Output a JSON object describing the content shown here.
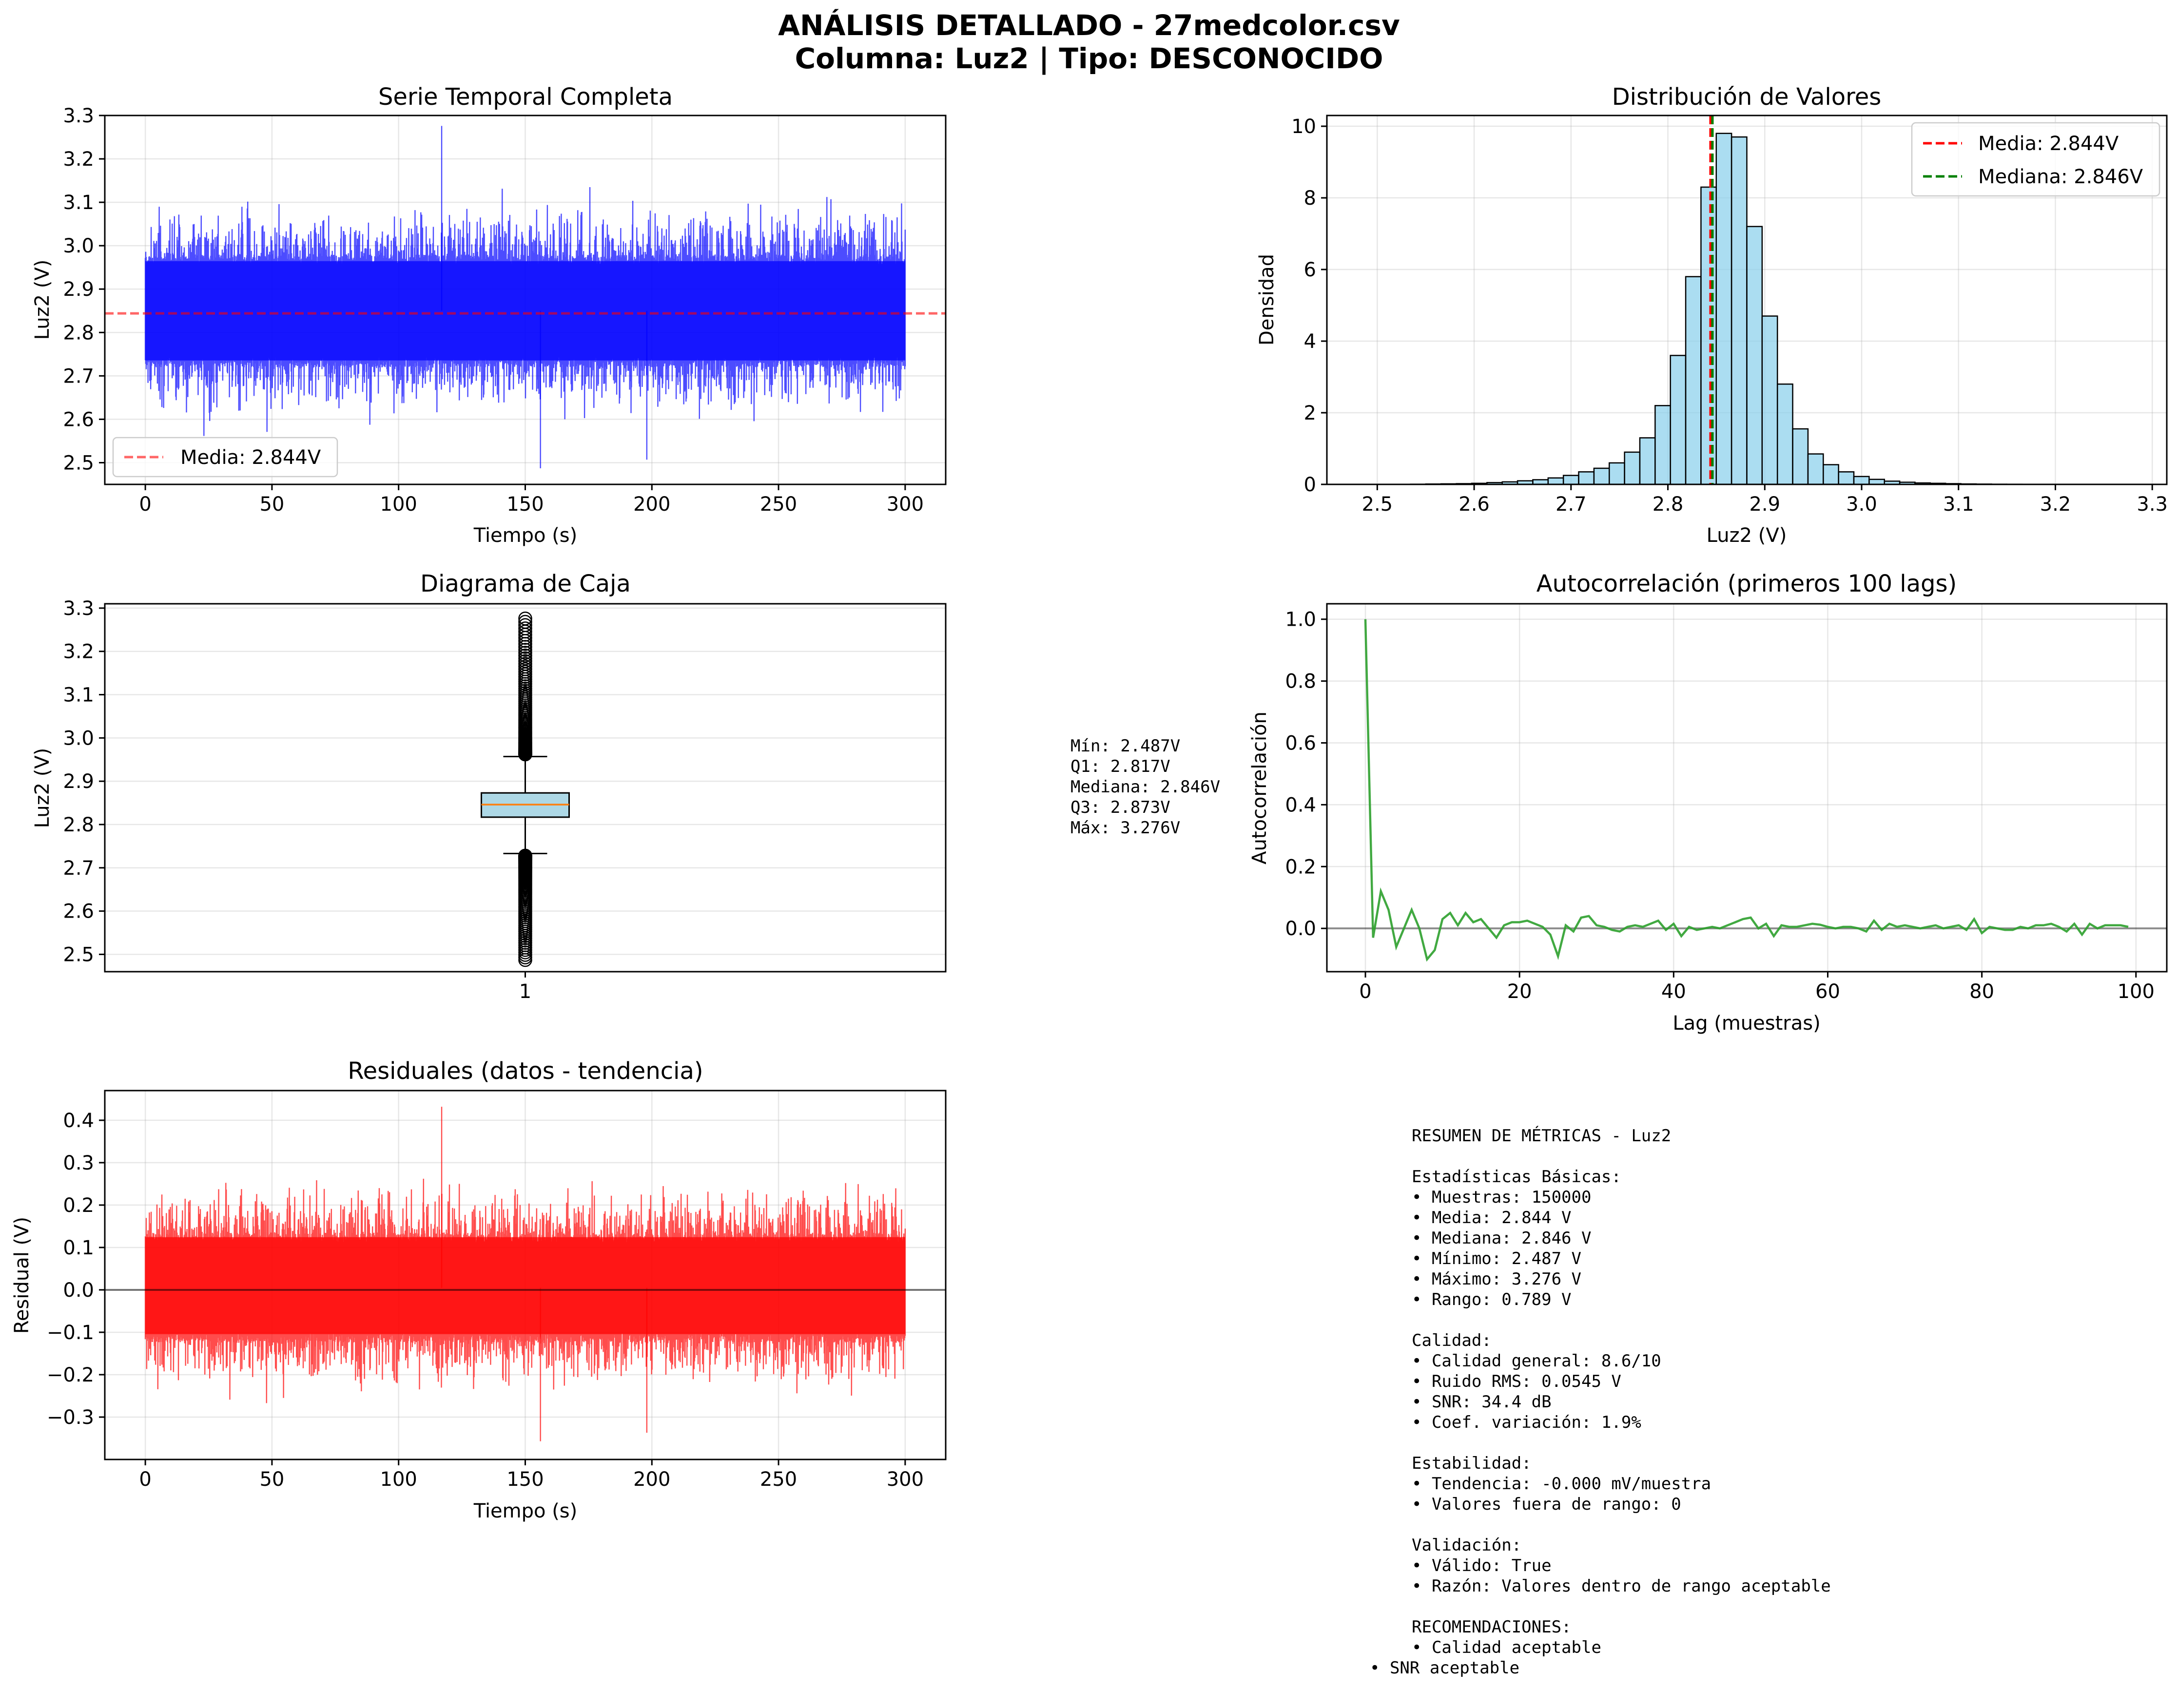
{
  "figure": {
    "title_line1": "ANÁLISIS DETALLADO - 27medcolor.csv",
    "title_line2": "Columna: Luz2 | Tipo: DESCONOCIDO"
  },
  "colors": {
    "signal": "#0000ff",
    "mean_red": "#ff0000",
    "median_green": "#008000",
    "hist_fill": "#87ceeb",
    "box_fill": "#add8e6",
    "box_median": "#ff7f0e",
    "acf_line": "#2ca02c",
    "residual": "#ff0000"
  },
  "chart_data": [
    {
      "id": "time_series",
      "type": "line",
      "title": "Serie Temporal Completa",
      "xlabel": "Tiempo (s)",
      "ylabel": "Luz2 (V)",
      "xlim": [
        -16,
        316
      ],
      "ylim": [
        2.45,
        3.3
      ],
      "xticks": [
        0,
        50,
        100,
        150,
        200,
        250,
        300
      ],
      "yticks": [
        2.5,
        2.6,
        2.7,
        2.8,
        2.9,
        3.0,
        3.1,
        3.2,
        3.3
      ],
      "x_range": [
        0,
        300
      ],
      "core_band": [
        2.72,
        2.98
      ],
      "extremes": [
        2.487,
        3.276
      ],
      "mean_line": 2.844,
      "legend": [
        {
          "label": "Media: 2.844V",
          "style": "dashed",
          "color": "#ff0000"
        }
      ],
      "legend_position": "lower-left",
      "grid": true
    },
    {
      "id": "histogram",
      "type": "bar",
      "title": "Distribución de Valores",
      "xlabel": "Luz2 (V)",
      "ylabel": "Densidad",
      "xlim": [
        2.448,
        3.315
      ],
      "ylim": [
        0,
        10.3
      ],
      "xticks": [
        2.5,
        2.6,
        2.7,
        2.8,
        2.9,
        3.0,
        3.1,
        3.2,
        3.3
      ],
      "yticks": [
        0,
        2,
        4,
        6,
        8,
        10
      ],
      "bin_start": 2.487,
      "bin_width": 0.01578,
      "densities": [
        0.003,
        0.0,
        0.003,
        0.005,
        0.01,
        0.015,
        0.02,
        0.03,
        0.05,
        0.07,
        0.1,
        0.13,
        0.18,
        0.25,
        0.35,
        0.45,
        0.6,
        0.9,
        1.3,
        2.2,
        3.6,
        5.8,
        8.3,
        9.8,
        9.7,
        7.2,
        4.7,
        2.8,
        1.55,
        0.85,
        0.55,
        0.35,
        0.22,
        0.14,
        0.09,
        0.06,
        0.04,
        0.03,
        0.02,
        0.012,
        0.008,
        0.005,
        0.004,
        0.003,
        0.002,
        0.002,
        0.001,
        0.001,
        0.001,
        0.001
      ],
      "mean_line": 2.844,
      "median_line": 2.846,
      "legend": [
        {
          "label": "Media: 2.844V",
          "style": "dashed",
          "color": "#ff0000"
        },
        {
          "label": "Mediana: 2.846V",
          "style": "dashed",
          "color": "#008000"
        }
      ],
      "legend_position": "top-right",
      "grid": true
    },
    {
      "id": "boxplot",
      "type": "box",
      "title": "Diagrama de Caja",
      "xlabel": "",
      "ylabel": "Luz2 (V)",
      "ylim": [
        2.46,
        3.31
      ],
      "yticks": [
        2.5,
        2.6,
        2.7,
        2.8,
        2.9,
        3.0,
        3.1,
        3.2,
        3.3
      ],
      "category": "1",
      "min": 2.487,
      "q1": 2.817,
      "median": 2.846,
      "q3": 2.873,
      "max": 3.276,
      "whisker_low": 2.733,
      "whisker_high": 2.957,
      "outlier_low_range": [
        2.487,
        2.733
      ],
      "outlier_high_range": [
        2.957,
        3.276
      ],
      "stats_box": {
        "line1": "Mín: 2.487V",
        "line2": "Q1: 2.817V",
        "line3": "Mediana: 2.846V",
        "line4": "Q3: 2.873V",
        "line5": "Máx: 3.276V"
      },
      "grid": true
    },
    {
      "id": "autocorrelation",
      "type": "line",
      "title": "Autocorrelación (primeros 100 lags)",
      "xlabel": "Lag (muestras)",
      "ylabel": "Autocorrelación",
      "xlim": [
        -5,
        104
      ],
      "ylim": [
        -0.14,
        1.05
      ],
      "xticks": [
        0,
        20,
        40,
        60,
        80,
        100
      ],
      "yticks": [
        0.0,
        0.2,
        0.4,
        0.6,
        0.8,
        1.0
      ],
      "values": [
        1.0,
        -0.03,
        0.12,
        0.06,
        -0.06,
        0.0,
        0.06,
        0.0,
        -0.1,
        -0.07,
        0.03,
        0.05,
        0.01,
        0.05,
        0.02,
        0.03,
        0.0,
        -0.03,
        0.01,
        0.02,
        0.02,
        0.025,
        0.015,
        0.005,
        -0.02,
        -0.09,
        0.01,
        -0.01,
        0.035,
        0.04,
        0.01,
        0.005,
        -0.005,
        -0.01,
        0.005,
        0.01,
        0.005,
        0.015,
        0.025,
        -0.005,
        0.015,
        -0.025,
        0.005,
        -0.005,
        0.0,
        0.005,
        0.0,
        0.01,
        0.02,
        0.03,
        0.035,
        0.0,
        0.015,
        -0.025,
        0.01,
        0.005,
        0.005,
        0.01,
        0.015,
        0.012,
        0.005,
        0.0,
        0.005,
        0.005,
        0.0,
        -0.01,
        0.025,
        -0.005,
        0.015,
        0.005,
        0.01,
        0.005,
        0.0,
        0.005,
        0.01,
        0.0,
        0.005,
        0.01,
        -0.005,
        0.03,
        -0.015,
        0.005,
        0.0,
        -0.005,
        -0.005,
        0.005,
        0.0,
        0.01,
        0.01,
        0.015,
        0.005,
        -0.01,
        0.015,
        -0.02,
        0.015,
        0.0,
        0.01,
        0.01,
        0.01,
        0.005
      ],
      "zero_line": 0,
      "grid": true
    },
    {
      "id": "residuals",
      "type": "line",
      "title": "Residuales (datos - tendencia)",
      "xlabel": "Tiempo (s)",
      "ylabel": "Residual (V)",
      "xlim": [
        -16,
        316
      ],
      "ylim": [
        -0.4,
        0.47
      ],
      "xticks": [
        0,
        50,
        100,
        150,
        200,
        250,
        300
      ],
      "yticks": [
        -0.3,
        -0.2,
        -0.1,
        0.0,
        0.1,
        0.2,
        0.3,
        0.4
      ],
      "x_range": [
        0,
        300
      ],
      "core_band": [
        -0.12,
        0.14
      ],
      "extremes": [
        -0.357,
        0.432
      ],
      "zero_line": 0,
      "grid": true
    }
  ],
  "summary": {
    "lines": [
      "RESUMEN DE MÉTRICAS - Luz2",
      "",
      "Estadísticas Básicas:",
      "• Muestras: 150000",
      "• Media: 2.844 V",
      "• Mediana: 2.846 V",
      "• Mínimo: 2.487 V",
      "• Máximo: 3.276 V",
      "• Rango: 0.789 V",
      "",
      "Calidad:",
      "• Calidad general: 8.6/10",
      "• Ruido RMS: 0.0545 V",
      "• SNR: 34.4 dB",
      "• Coef. variación: 1.9%",
      "",
      "Estabilidad:",
      "• Tendencia: -0.000 mV/muestra",
      "• Valores fuera de rango: 0",
      "",
      "Validación:",
      "• Válido: True",
      "• Razón: Valores dentro de rango aceptable",
      "",
      "RECOMENDACIONES:",
      "• Calidad aceptable"
    ],
    "last_line": "• SNR aceptable"
  }
}
